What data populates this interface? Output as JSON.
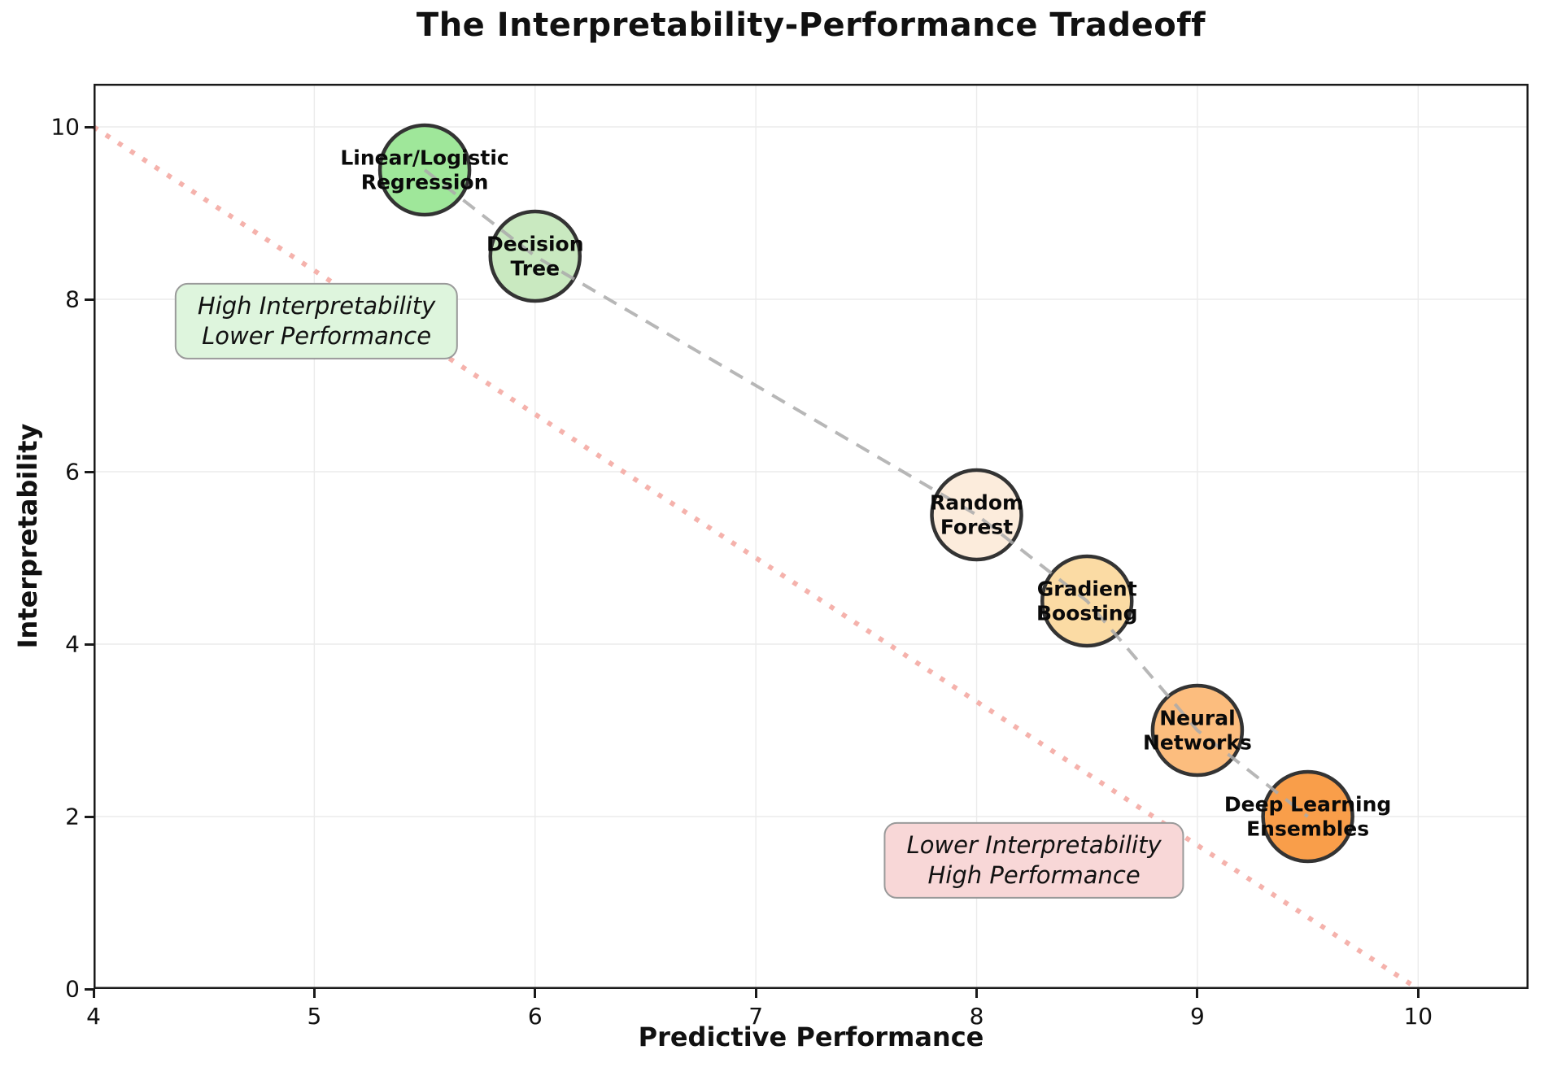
{
  "chart_data": {
    "type": "scatter",
    "title": "The Interpretability-Performance Tradeoff",
    "xlabel": "Predictive Performance",
    "ylabel": "Interpretability",
    "xlim": [
      4,
      10.5
    ],
    "ylim": [
      0,
      10.5
    ],
    "x_ticks": [
      4,
      5,
      6,
      7,
      8,
      9,
      10
    ],
    "y_ticks": [
      0,
      2,
      4,
      6,
      8,
      10
    ],
    "grid": true,
    "grid_color": "#ebebeb",
    "point_radius": 55,
    "point_edge_color": "#333333",
    "points": [
      {
        "label_lines": [
          "Linear/Logistic",
          "Regression"
        ],
        "x": 5.5,
        "y": 9.5,
        "color": "#9fe79a"
      },
      {
        "label_lines": [
          "Decision",
          "Tree"
        ],
        "x": 6.0,
        "y": 8.5,
        "color": "#c9e9c0"
      },
      {
        "label_lines": [
          "Random",
          "Forest"
        ],
        "x": 8.0,
        "y": 5.5,
        "color": "#fcecdc"
      },
      {
        "label_lines": [
          "Gradient",
          "Boosting"
        ],
        "x": 8.5,
        "y": 4.5,
        "color": "#fbdba4"
      },
      {
        "label_lines": [
          "Neural",
          "Networks"
        ],
        "x": 9.0,
        "y": 3.0,
        "color": "#fcbd7e"
      },
      {
        "label_lines": [
          "Deep Learning",
          "Ensembles"
        ],
        "x": 9.5,
        "y": 2.0,
        "color": "#f99e4a"
      }
    ],
    "connector_line": {
      "style": "dashed",
      "color": "#aaaaaa",
      "width": 4,
      "dash": "18 12"
    },
    "tradeoff_line": {
      "style": "dotted",
      "color": "#f5b2ac",
      "width": 6,
      "dash": "6 12",
      "from": [
        4,
        10
      ],
      "to": [
        10,
        0
      ]
    },
    "annotations": [
      {
        "lines": [
          "High Interpretability",
          "Lower Performance"
        ],
        "x": 5.01,
        "y": 7.75,
        "bg": "#def5dd",
        "border": "#9a9a9a"
      },
      {
        "lines": [
          "Lower Interpretability",
          "High Performance"
        ],
        "x": 8.26,
        "y": 1.49,
        "bg": "#f8d7d7",
        "border": "#9a9a9a"
      }
    ],
    "legend": null
  }
}
